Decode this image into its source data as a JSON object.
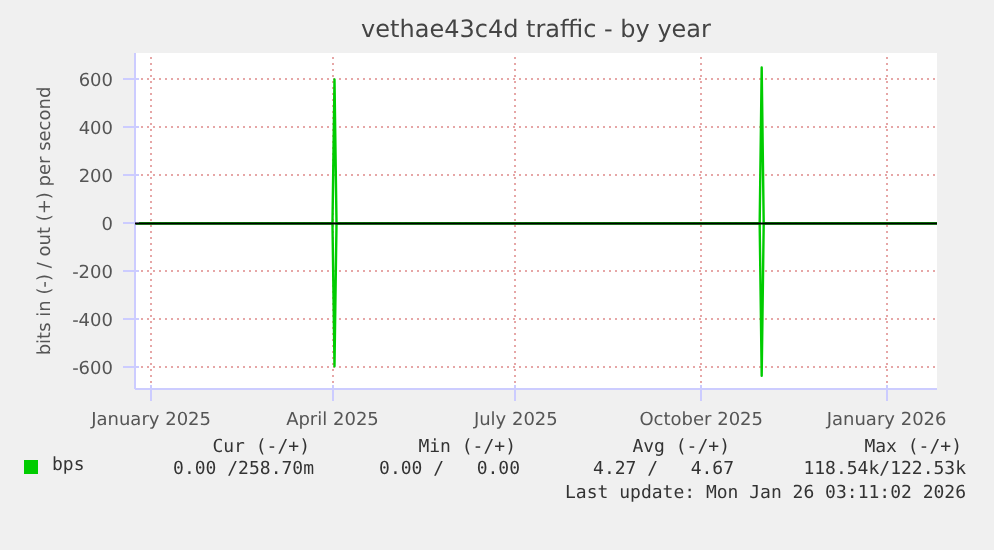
{
  "chart_data": {
    "type": "line",
    "title": "vethae43c4d traffic - by year",
    "ylabel": "bits in (-) / out (+) per second",
    "series": [
      {
        "name": "bps",
        "color": "#00cc00",
        "x": [
          "2024-12-24",
          "2025-04-01",
          "2025-04-02",
          "2025-04-03",
          "2025-10-30",
          "2025-10-31",
          "2025-11-01",
          "2026-01-26"
        ],
        "values": [
          0,
          0,
          600,
          0,
          0,
          650,
          0,
          0
        ]
      },
      {
        "color": "#00cc00",
        "x": [
          "2024-12-24",
          "2025-04-01",
          "2025-04-02",
          "2025-04-03",
          "2025-10-30",
          "2025-10-31",
          "2025-11-01",
          "2026-01-26"
        ],
        "values": [
          0,
          0,
          -595,
          0,
          0,
          -635,
          0,
          0
        ]
      }
    ],
    "xlim": [
      "2024-12-24",
      "2026-01-26"
    ],
    "xticks": [
      {
        "value": "2025-01-01",
        "label": "January 2025"
      },
      {
        "value": "2025-04-01",
        "label": "April 2025"
      },
      {
        "value": "2025-07-01",
        "label": "July 2025"
      },
      {
        "value": "2025-10-01",
        "label": "October 2025"
      },
      {
        "value": "2026-01-01",
        "label": "January 2026"
      }
    ],
    "ylim": [
      -690,
      710
    ],
    "yticks": [
      -600,
      -400,
      -200,
      0,
      200,
      400,
      600
    ],
    "ref_lines": [
      {
        "axis": "y",
        "value": 0,
        "color": "#000000"
      }
    ],
    "grid": true,
    "legend": "bottom",
    "annotations": [
      "Cur (-/+)",
      "Min (-/+)",
      "Avg (-/+)",
      "Max (-/+)",
      "0.00 /258.70m",
      "0.00 /   0.00",
      "4.27 /   4.67",
      "118.54k/122.53k",
      "Last update: Mon Jan 26 03:11:02 2026"
    ]
  }
}
